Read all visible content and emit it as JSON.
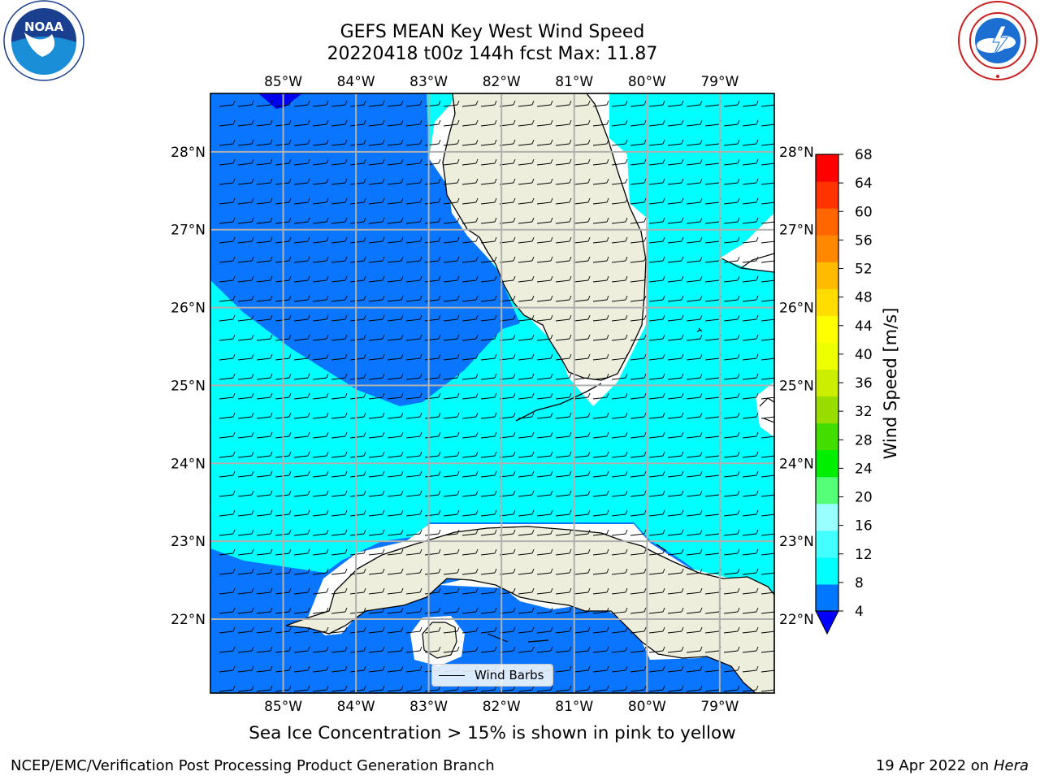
{
  "header": {
    "title_line1": "GEFS MEAN Key West Wind Speed",
    "title_line2": "20220418 t00z 144h fcst   Max: 11.87"
  },
  "logos": {
    "left": {
      "icon": "noaa-logo",
      "text": "NOAA"
    },
    "right": {
      "icon": "nws-logo"
    }
  },
  "map": {
    "top_lon_labels": [
      "85°W",
      "84°W",
      "83°W",
      "82°W",
      "81°W",
      "80°W",
      "79°W"
    ],
    "bottom_lon_labels": [
      "85°W",
      "84°W",
      "83°W",
      "82°W",
      "81°W",
      "80°W",
      "79°W"
    ],
    "left_lat_labels": [
      "28°N",
      "27°N",
      "26°N",
      "25°N",
      "24°N",
      "23°N",
      "22°N"
    ],
    "right_lat_labels": [
      "28°N",
      "27°N",
      "26°N",
      "25°N",
      "24°N",
      "23°N",
      "22°N"
    ],
    "lon_values": [
      -85,
      -84,
      -83,
      -82,
      -81,
      -80,
      -79
    ],
    "lat_values": [
      28,
      27,
      26,
      25,
      24,
      23,
      22
    ],
    "extent": {
      "lon": [
        -86,
        -78.25
      ],
      "lat": [
        21.05,
        28.75
      ]
    },
    "colors": {
      "land": "#eeeedc",
      "ocean_4_8": "#0a75ff",
      "ocean_8_12": "#00ffff",
      "low_wind": "#0000ee",
      "grid": "#b0b0b0"
    },
    "legend_label": "Wind Barbs"
  },
  "colorbar": {
    "label": "Wind Speed [m/s]",
    "ticks": [
      "68",
      "64",
      "60",
      "56",
      "52",
      "48",
      "44",
      "40",
      "36",
      "32",
      "28",
      "24",
      "20",
      "16",
      "12",
      "8",
      "4"
    ],
    "colors": [
      "#0000ff",
      "#0077ff",
      "#00ffff",
      "#44ffff",
      "#99ffff",
      "#55ff77",
      "#00ee00",
      "#44dd00",
      "#99dd00",
      "#ccee00",
      "#eeff00",
      "#ffff00",
      "#ffdd00",
      "#ffbb00",
      "#ff8800",
      "#ff6600",
      "#ff3300",
      "#ff0000"
    ]
  },
  "footer": {
    "note": "Sea Ice Concentration > 15% is shown in pink to yellow",
    "credit": "NCEP/EMC/Verification Post Processing Product Generation Branch",
    "date": "19 Apr 2022 on",
    "machine": "Hera"
  }
}
